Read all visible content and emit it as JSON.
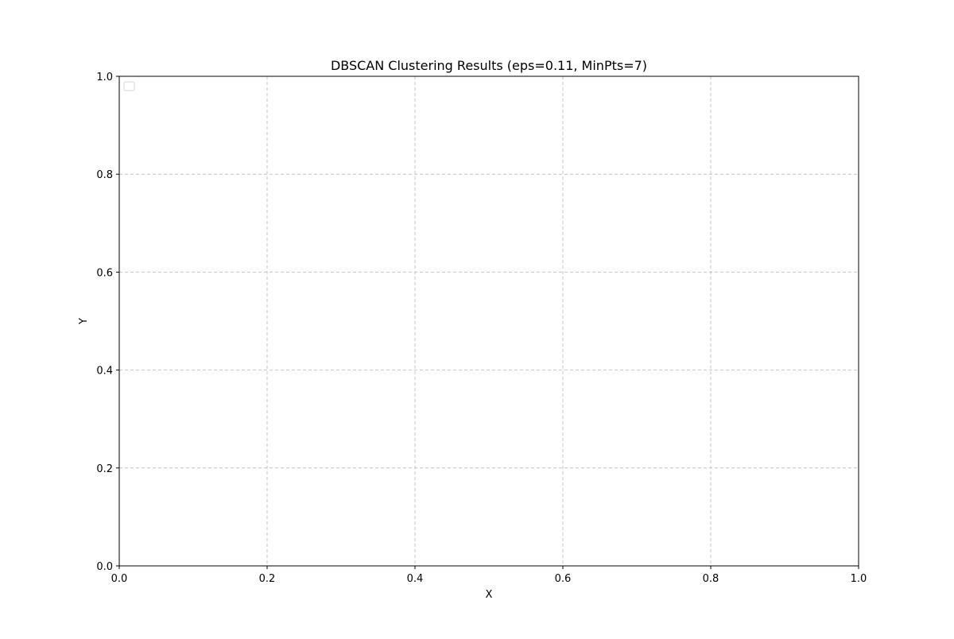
{
  "chart_data": {
    "type": "scatter",
    "title": "DBSCAN Clustering Results (eps=0.11, MinPts=7)",
    "xlabel": "X",
    "ylabel": "Y",
    "xlim": [
      0.0,
      1.0
    ],
    "ylim": [
      0.0,
      1.0
    ],
    "xticks": [
      0.0,
      0.2,
      0.4,
      0.6,
      0.8,
      1.0
    ],
    "yticks": [
      0.0,
      0.2,
      0.4,
      0.6,
      0.8,
      1.0
    ],
    "xtick_labels": [
      "0.0",
      "0.2",
      "0.4",
      "0.6",
      "0.8",
      "1.0"
    ],
    "ytick_labels": [
      "0.0",
      "0.2",
      "0.4",
      "0.6",
      "0.8",
      "1.0"
    ],
    "grid": true,
    "legend": {
      "position": "top-left",
      "entries": []
    },
    "series": []
  }
}
